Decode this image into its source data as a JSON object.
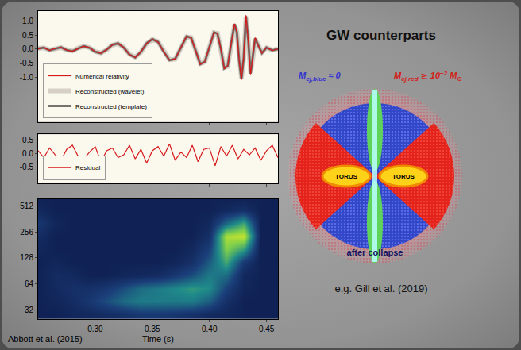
{
  "chart_data": [
    {
      "type": "line",
      "x": [
        0.25,
        0.255,
        0.26,
        0.265,
        0.27,
        0.275,
        0.28,
        0.285,
        0.29,
        0.295,
        0.3,
        0.305,
        0.31,
        0.315,
        0.32,
        0.325,
        0.33,
        0.335,
        0.34,
        0.345,
        0.35,
        0.355,
        0.36,
        0.365,
        0.37,
        0.375,
        0.38,
        0.384,
        0.388,
        0.392,
        0.396,
        0.4,
        0.404,
        0.407,
        0.41,
        0.413,
        0.416,
        0.419,
        0.422,
        0.424,
        0.426,
        0.428,
        0.43,
        0.432,
        0.434,
        0.436,
        0.438,
        0.44,
        0.443,
        0.446,
        0.45,
        0.455,
        0.46
      ],
      "series": [
        {
          "name": "Numerical relativity",
          "color": "#d7191c",
          "values": [
            0.0,
            0.05,
            -0.05,
            0.02,
            0.06,
            -0.04,
            -0.08,
            0.02,
            0.1,
            0.05,
            -0.1,
            -0.15,
            -0.02,
            0.15,
            0.2,
            0.05,
            -0.2,
            -0.3,
            -0.1,
            0.2,
            0.35,
            0.25,
            -0.1,
            -0.4,
            -0.35,
            0.05,
            0.45,
            0.4,
            -0.1,
            -0.55,
            -0.45,
            0.1,
            0.6,
            0.55,
            0.0,
            -0.7,
            -0.6,
            0.2,
            0.9,
            0.6,
            -0.4,
            -1.1,
            -0.3,
            1.2,
            0.3,
            -0.9,
            -0.3,
            0.4,
            0.1,
            -0.15,
            0.05,
            -0.05,
            0.0
          ]
        },
        {
          "name": "Reconstructed (wavelet)",
          "color": "#d6d0c6",
          "values": [
            0.02,
            0.04,
            -0.04,
            0.02,
            0.05,
            -0.03,
            -0.07,
            0.03,
            0.09,
            0.05,
            -0.09,
            -0.14,
            -0.03,
            0.14,
            0.19,
            0.06,
            -0.19,
            -0.29,
            -0.11,
            0.19,
            0.34,
            0.26,
            -0.09,
            -0.38,
            -0.36,
            0.04,
            0.43,
            0.41,
            -0.08,
            -0.52,
            -0.46,
            0.08,
            0.58,
            0.56,
            0.02,
            -0.66,
            -0.62,
            0.18,
            0.86,
            0.62,
            -0.36,
            -1.04,
            -0.34,
            1.12,
            0.34,
            -0.84,
            -0.32,
            0.36,
            0.12,
            -0.12,
            0.04,
            -0.04,
            0.0
          ]
        },
        {
          "name": "Reconstructed (template)",
          "color": "#77726c",
          "values": [
            0.01,
            0.05,
            -0.05,
            0.01,
            0.06,
            -0.04,
            -0.08,
            0.02,
            0.1,
            0.04,
            -0.1,
            -0.15,
            -0.02,
            0.15,
            0.2,
            0.05,
            -0.2,
            -0.3,
            -0.1,
            0.2,
            0.35,
            0.25,
            -0.1,
            -0.4,
            -0.35,
            0.05,
            0.45,
            0.4,
            -0.1,
            -0.54,
            -0.45,
            0.1,
            0.59,
            0.55,
            0.0,
            -0.69,
            -0.6,
            0.2,
            0.89,
            0.6,
            -0.4,
            -1.08,
            -0.31,
            1.17,
            0.31,
            -0.88,
            -0.31,
            0.38,
            0.11,
            -0.14,
            0.05,
            -0.05,
            0.0
          ]
        }
      ],
      "xlim": [
        0.25,
        0.46
      ],
      "xticks": [
        0.3,
        0.35,
        0.4,
        0.45
      ],
      "ylim": [
        -2.6,
        1.35
      ],
      "yticks": [
        {
          "value": -1,
          "label": "-1.0"
        },
        {
          "value": -0.5,
          "label": "-0.5"
        },
        {
          "value": 0,
          "label": "0.0"
        },
        {
          "value": 0.5,
          "label": "0.5"
        },
        {
          "value": 1,
          "label": "1.0"
        }
      ],
      "tick_labels": "y",
      "grid": false,
      "legend": "lower left"
    },
    {
      "type": "line",
      "x": [
        0.25,
        0.255,
        0.26,
        0.265,
        0.27,
        0.275,
        0.28,
        0.285,
        0.29,
        0.295,
        0.3,
        0.305,
        0.31,
        0.315,
        0.32,
        0.325,
        0.33,
        0.335,
        0.34,
        0.345,
        0.35,
        0.355,
        0.36,
        0.365,
        0.37,
        0.375,
        0.38,
        0.385,
        0.39,
        0.395,
        0.4,
        0.405,
        0.41,
        0.415,
        0.42,
        0.425,
        0.43,
        0.435,
        0.44,
        0.445,
        0.45,
        0.455,
        0.46
      ],
      "series": [
        {
          "name": "Residual",
          "color": "#d7191c",
          "values": [
            0.1,
            -0.15,
            0.2,
            -0.05,
            -0.25,
            0.15,
            0.3,
            -0.1,
            -0.2,
            0.05,
            0.25,
            -0.3,
            0.1,
            0.2,
            -0.15,
            -0.05,
            0.3,
            -0.2,
            0.15,
            -0.35,
            0.1,
            0.25,
            -0.1,
            0.35,
            -0.25,
            0.05,
            -0.15,
            0.3,
            -0.3,
            0.15,
            0.2,
            -0.45,
            0.25,
            -0.1,
            0.3,
            -0.2,
            0.15,
            -0.05,
            0.2,
            -0.25,
            0.1,
            0.3,
            -0.15
          ]
        }
      ],
      "xlim": [
        0.25,
        0.46
      ],
      "xticks": [
        0.3,
        0.35,
        0.4,
        0.45
      ],
      "ylim": [
        -1.1,
        0.7
      ],
      "yticks": [
        {
          "value": -0.5,
          "label": "-0.5"
        },
        {
          "value": 0,
          "label": "0.0"
        },
        {
          "value": 0.5,
          "label": "0.5"
        }
      ],
      "tick_labels": "y",
      "grid": false,
      "legend": "lower left"
    },
    {
      "type": "heatmap",
      "xlabel": "Time (s)",
      "x": [
        0.25,
        0.265,
        0.28,
        0.295,
        0.31,
        0.325,
        0.34,
        0.355,
        0.37,
        0.385,
        0.4,
        0.415,
        0.43,
        0.445,
        0.46
      ],
      "y": [
        28,
        40,
        56,
        80,
        113,
        160,
        226,
        320,
        452,
        640
      ],
      "cells": [
        [
          0.05,
          0.05,
          0.08,
          0.1,
          0.12,
          0.15,
          0.2,
          0.2,
          0.18,
          0.15,
          0.1,
          0.08,
          0.05,
          0.05,
          0.05
        ],
        [
          0.05,
          0.08,
          0.12,
          0.2,
          0.3,
          0.4,
          0.45,
          0.45,
          0.45,
          0.45,
          0.35,
          0.15,
          0.05,
          0.05,
          0.05
        ],
        [
          0.05,
          0.1,
          0.15,
          0.15,
          0.2,
          0.3,
          0.4,
          0.45,
          0.5,
          0.55,
          0.5,
          0.25,
          0.08,
          0.05,
          0.05
        ],
        [
          0.05,
          0.12,
          0.1,
          0.05,
          0.05,
          0.08,
          0.1,
          0.12,
          0.2,
          0.3,
          0.45,
          0.4,
          0.1,
          0.05,
          0.05
        ],
        [
          0.05,
          0.08,
          0.05,
          0.05,
          0.05,
          0.05,
          0.05,
          0.05,
          0.08,
          0.15,
          0.35,
          0.6,
          0.2,
          0.05,
          0.05
        ],
        [
          0.08,
          0.05,
          0.05,
          0.05,
          0.05,
          0.05,
          0.05,
          0.05,
          0.05,
          0.1,
          0.25,
          0.75,
          0.55,
          0.05,
          0.05
        ],
        [
          0.12,
          0.05,
          0.05,
          0.05,
          0.05,
          0.05,
          0.05,
          0.05,
          0.05,
          0.05,
          0.15,
          0.85,
          0.9,
          0.05,
          0.05
        ],
        [
          0.2,
          0.08,
          0.05,
          0.05,
          0.05,
          0.05,
          0.05,
          0.05,
          0.05,
          0.05,
          0.1,
          0.4,
          0.6,
          0.05,
          0.05
        ],
        [
          0.1,
          0.05,
          0.05,
          0.05,
          0.05,
          0.05,
          0.05,
          0.05,
          0.05,
          0.05,
          0.05,
          0.1,
          0.15,
          0.05,
          0.05
        ],
        [
          0.05,
          0.05,
          0.05,
          0.05,
          0.05,
          0.05,
          0.05,
          0.05,
          0.05,
          0.05,
          0.05,
          0.05,
          0.05,
          0.05,
          0.05
        ]
      ],
      "zlim": [
        0,
        1
      ],
      "xlim": [
        0.25,
        0.46
      ],
      "xticks": [
        {
          "value": 0.3,
          "label": "0.30"
        },
        {
          "value": 0.35,
          "label": "0.35"
        },
        {
          "value": 0.4,
          "label": "0.40"
        },
        {
          "value": 0.45,
          "label": "0.45"
        }
      ],
      "ylim": [
        25,
        614
      ],
      "yticks": [
        32,
        64,
        128,
        256,
        512
      ],
      "log": "y",
      "grid": false
    }
  ],
  "source": "Abbott et al. (2015)",
  "diagram": {
    "title": "GW counterparts",
    "labels": [
      {
        "symbol": "M",
        "subscript": "ej,blue",
        "relation": "≈ 0",
        "color": "#3535d0"
      },
      {
        "symbol": "M",
        "subscript": "ej,red",
        "relation": "≳ 10",
        "exponent": "−2",
        "unit": "M",
        "unit_subscript": "⊙",
        "color": "#d41f1a"
      }
    ],
    "regions": [
      "TORUS",
      "TORUS"
    ],
    "bottom_label": "after collapse",
    "caption": "e.g. Gill et al. (2019)"
  }
}
